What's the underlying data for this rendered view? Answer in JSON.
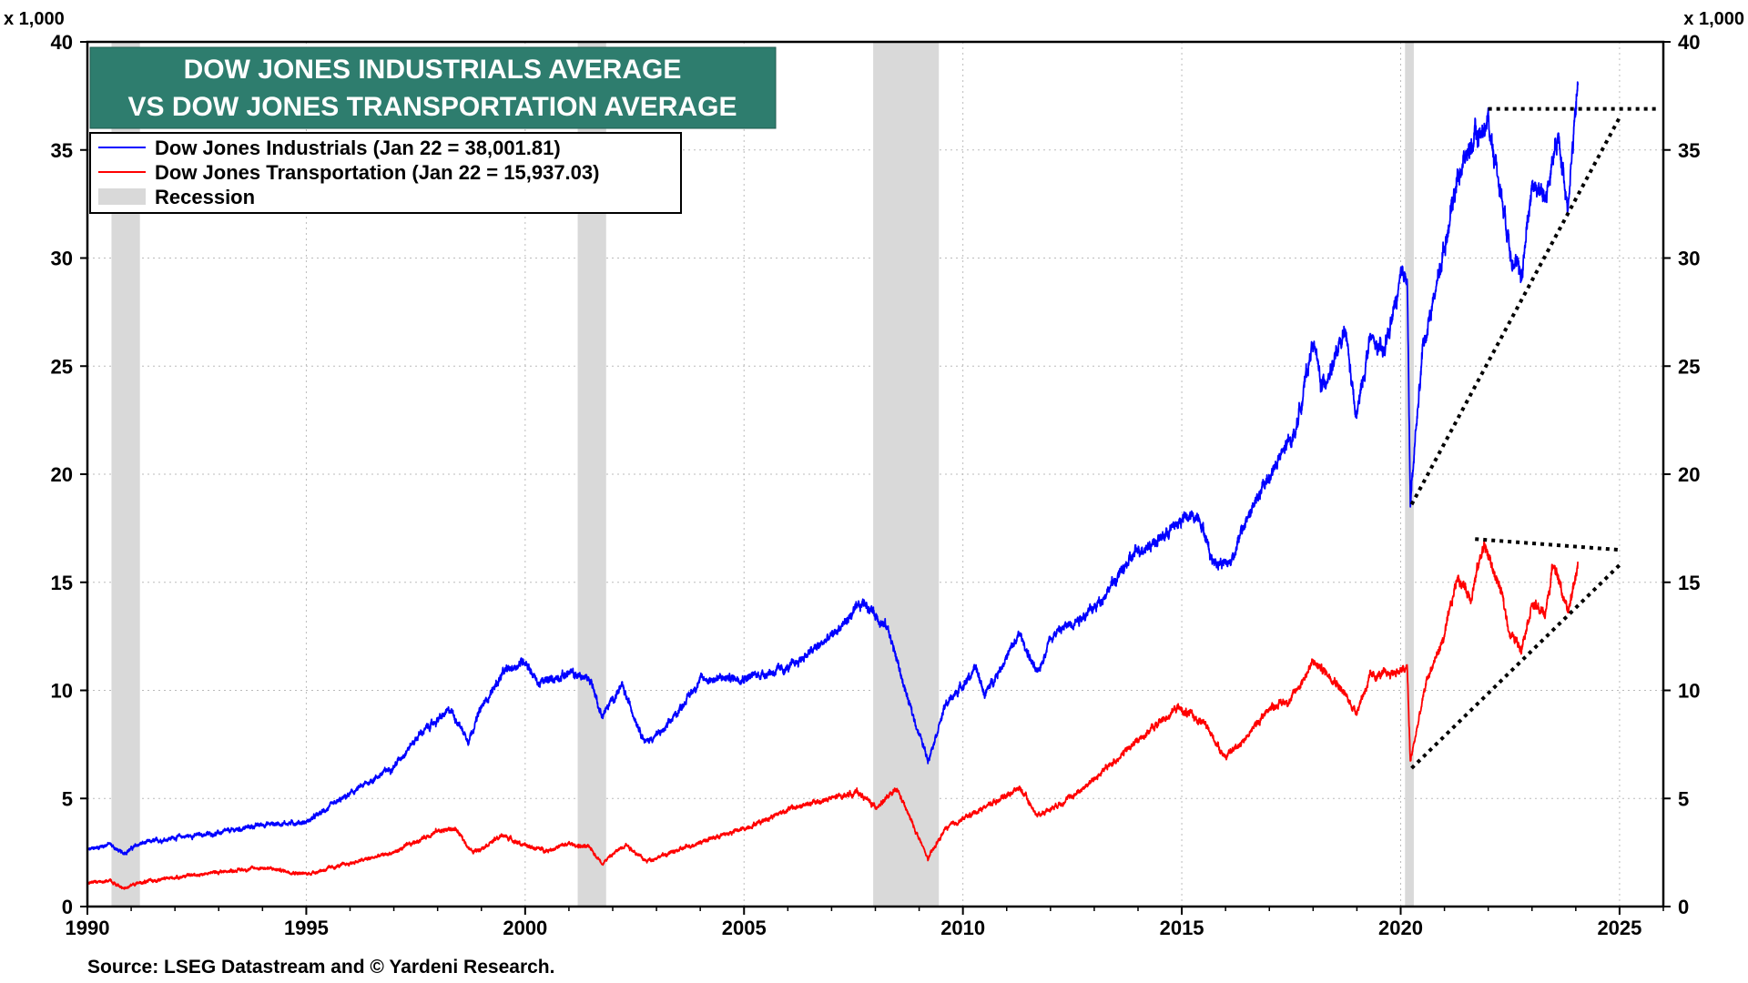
{
  "chart_data": {
    "type": "line",
    "title_line1": "DOW JONES INDUSTRIALS AVERAGE",
    "title_line2": "VS DOW JONES TRANSPORTATION AVERAGE",
    "unit_left": "x 1,000",
    "unit_right": "x 1,000",
    "xlim": [
      1990,
      2026
    ],
    "ylim": [
      0,
      40
    ],
    "x_ticks": [
      1990,
      1995,
      2000,
      2005,
      2010,
      2015,
      2020,
      2025
    ],
    "y_ticks": [
      0,
      5,
      10,
      15,
      20,
      25,
      30,
      35,
      40
    ],
    "grid": true,
    "legend_position": "top-left",
    "legend": {
      "industrials": "Dow Jones Industrials (Jan 22 = 38,001.81)",
      "transportation": "Dow Jones Transportation (Jan 22 = 15,937.03)",
      "recession": "Recession"
    },
    "source": "Source: LSEG Datastream and © Yardeni Research.",
    "colors": {
      "industrials": "#0000ff",
      "transportation": "#ff0000",
      "recession": "#d9d9d9",
      "title_bg": "#2e7d6e",
      "trendline": "#000000"
    },
    "recessions": [
      {
        "start": 1990.55,
        "end": 1991.2
      },
      {
        "start": 2001.2,
        "end": 2001.85
      },
      {
        "start": 2007.95,
        "end": 2009.45
      },
      {
        "start": 2020.1,
        "end": 2020.3
      }
    ],
    "series": [
      {
        "name": "Dow Jones Industrials",
        "key": "industrials",
        "points": [
          [
            1990.0,
            2.6
          ],
          [
            1990.5,
            2.9
          ],
          [
            1990.8,
            2.45
          ],
          [
            1991.2,
            2.9
          ],
          [
            1992.0,
            3.2
          ],
          [
            1993.0,
            3.4
          ],
          [
            1994.0,
            3.8
          ],
          [
            1995.0,
            3.9
          ],
          [
            1996.0,
            5.2
          ],
          [
            1997.0,
            6.5
          ],
          [
            1997.6,
            8.0
          ],
          [
            1998.3,
            9.1
          ],
          [
            1998.7,
            7.7
          ],
          [
            1999.0,
            9.2
          ],
          [
            1999.5,
            10.8
          ],
          [
            2000.0,
            11.4
          ],
          [
            2000.3,
            10.3
          ],
          [
            2001.0,
            10.8
          ],
          [
            2001.5,
            10.5
          ],
          [
            2001.75,
            8.8
          ],
          [
            2002.2,
            10.2
          ],
          [
            2002.75,
            7.6
          ],
          [
            2003.2,
            8.2
          ],
          [
            2004.0,
            10.5
          ],
          [
            2005.0,
            10.6
          ],
          [
            2006.0,
            11.0
          ],
          [
            2007.0,
            12.5
          ],
          [
            2007.75,
            14.1
          ],
          [
            2008.3,
            12.8
          ],
          [
            2008.75,
            9.5
          ],
          [
            2009.2,
            6.8
          ],
          [
            2009.6,
            9.3
          ],
          [
            2010.3,
            11.0
          ],
          [
            2010.5,
            9.8
          ],
          [
            2011.3,
            12.6
          ],
          [
            2011.7,
            10.7
          ],
          [
            2012.0,
            12.5
          ],
          [
            2013.0,
            13.8
          ],
          [
            2014.0,
            16.5
          ],
          [
            2014.5,
            17.0
          ],
          [
            2015.0,
            17.9
          ],
          [
            2015.4,
            18.1
          ],
          [
            2015.7,
            16.0
          ],
          [
            2016.1,
            15.9
          ],
          [
            2016.5,
            18.0
          ],
          [
            2017.0,
            19.9
          ],
          [
            2017.6,
            22.0
          ],
          [
            2018.0,
            26.2
          ],
          [
            2018.2,
            24.0
          ],
          [
            2018.75,
            26.5
          ],
          [
            2018.98,
            22.5
          ],
          [
            2019.3,
            26.3
          ],
          [
            2019.6,
            25.5
          ],
          [
            2020.0,
            28.9
          ],
          [
            2020.15,
            29.4
          ],
          [
            2020.22,
            18.6
          ],
          [
            2020.5,
            25.8
          ],
          [
            2020.9,
            29.5
          ],
          [
            2021.3,
            33.8
          ],
          [
            2021.6,
            35.2
          ],
          [
            2022.0,
            36.3
          ],
          [
            2022.3,
            33.0
          ],
          [
            2022.5,
            30.5
          ],
          [
            2022.75,
            29.0
          ],
          [
            2023.0,
            33.5
          ],
          [
            2023.3,
            32.8
          ],
          [
            2023.6,
            35.5
          ],
          [
            2023.82,
            32.5
          ],
          [
            2024.05,
            38.0
          ]
        ]
      },
      {
        "name": "Dow Jones Transportation",
        "key": "transportation",
        "points": [
          [
            1990.0,
            1.1
          ],
          [
            1990.5,
            1.2
          ],
          [
            1990.8,
            0.85
          ],
          [
            1991.2,
            1.1
          ],
          [
            1992.0,
            1.35
          ],
          [
            1993.0,
            1.6
          ],
          [
            1994.0,
            1.8
          ],
          [
            1995.0,
            1.5
          ],
          [
            1996.0,
            2.0
          ],
          [
            1997.0,
            2.5
          ],
          [
            1998.0,
            3.5
          ],
          [
            1998.4,
            3.6
          ],
          [
            1998.8,
            2.5
          ],
          [
            1999.5,
            3.3
          ],
          [
            2000.0,
            2.8
          ],
          [
            2000.5,
            2.6
          ],
          [
            2001.0,
            2.9
          ],
          [
            2001.5,
            2.7
          ],
          [
            2001.75,
            2.0
          ],
          [
            2002.3,
            2.9
          ],
          [
            2002.75,
            2.1
          ],
          [
            2003.5,
            2.6
          ],
          [
            2004.0,
            3.0
          ],
          [
            2005.0,
            3.6
          ],
          [
            2006.0,
            4.5
          ],
          [
            2007.0,
            5.0
          ],
          [
            2007.6,
            5.3
          ],
          [
            2008.0,
            4.6
          ],
          [
            2008.5,
            5.4
          ],
          [
            2008.9,
            3.6
          ],
          [
            2009.2,
            2.2
          ],
          [
            2009.6,
            3.6
          ],
          [
            2010.4,
            4.5
          ],
          [
            2011.3,
            5.5
          ],
          [
            2011.7,
            4.2
          ],
          [
            2012.5,
            5.1
          ],
          [
            2013.0,
            5.9
          ],
          [
            2014.0,
            7.7
          ],
          [
            2014.9,
            9.2
          ],
          [
            2015.5,
            8.5
          ],
          [
            2016.0,
            6.9
          ],
          [
            2016.5,
            7.9
          ],
          [
            2017.0,
            9.2
          ],
          [
            2017.5,
            9.6
          ],
          [
            2018.0,
            11.3
          ],
          [
            2018.5,
            10.5
          ],
          [
            2018.98,
            9.0
          ],
          [
            2019.3,
            10.6
          ],
          [
            2020.0,
            10.9
          ],
          [
            2020.15,
            11.0
          ],
          [
            2020.22,
            6.7
          ],
          [
            2020.6,
            10.5
          ],
          [
            2021.0,
            12.5
          ],
          [
            2021.3,
            15.3
          ],
          [
            2021.6,
            14.3
          ],
          [
            2021.9,
            16.8
          ],
          [
            2022.3,
            14.5
          ],
          [
            2022.5,
            12.6
          ],
          [
            2022.75,
            12.0
          ],
          [
            2023.0,
            14.0
          ],
          [
            2023.3,
            13.5
          ],
          [
            2023.5,
            16.0
          ],
          [
            2023.82,
            13.5
          ],
          [
            2024.05,
            15.9
          ]
        ]
      }
    ],
    "trendlines": [
      {
        "from": [
          2022.0,
          36.9
        ],
        "to": [
          2025.85,
          36.9
        ]
      },
      {
        "from": [
          2020.25,
          18.6
        ],
        "to": [
          2025.0,
          36.5
        ]
      },
      {
        "from": [
          2021.7,
          17.0
        ],
        "to": [
          2025.0,
          16.5
        ]
      },
      {
        "from": [
          2020.25,
          6.4
        ],
        "to": [
          2025.0,
          15.8
        ]
      }
    ]
  }
}
